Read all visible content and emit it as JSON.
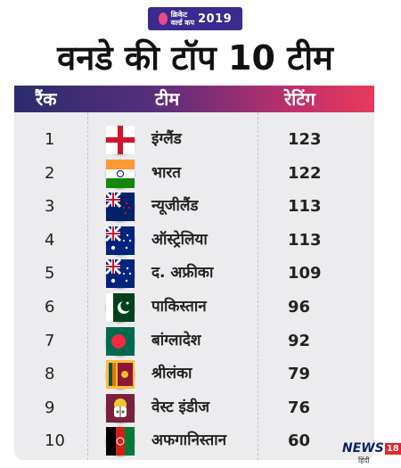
{
  "badge": {
    "line1": "क्रिकेट",
    "line2": "वर्ल्ड कप",
    "year": "2019"
  },
  "title": "वनडे की टॉप 10 टीम",
  "headers": {
    "rank": "रैंक",
    "team": "टीम",
    "rating": "रेटिंग"
  },
  "rows": [
    {
      "rank": "1",
      "team": "इंग्लैंड",
      "rating": "123",
      "flag": "england-flag"
    },
    {
      "rank": "2",
      "team": "भारत",
      "rating": "122",
      "flag": "india-flag"
    },
    {
      "rank": "3",
      "team": "न्यूजीलैंड",
      "rating": "113",
      "flag": "new-zealand-flag"
    },
    {
      "rank": "4",
      "team": "ऑस्ट्रेलिया",
      "rating": "113",
      "flag": "australia-flag"
    },
    {
      "rank": "5",
      "team": "द. अफ्रीका",
      "rating": "109",
      "flag": "australia-flag"
    },
    {
      "rank": "6",
      "team": "पाकिस्तान",
      "rating": "96",
      "flag": "pakistan-flag"
    },
    {
      "rank": "7",
      "team": "बांग्लादेश",
      "rating": "92",
      "flag": "bangladesh-flag"
    },
    {
      "rank": "8",
      "team": "श्रीलंका",
      "rating": "79",
      "flag": "sri-lanka-flag"
    },
    {
      "rank": "9",
      "team": "वेस्ट इंडीज",
      "rating": "76",
      "flag": "west-indies-flag"
    },
    {
      "rank": "10",
      "team": "अफगानिस्तान",
      "rating": "60",
      "flag": "afghanistan-flag"
    }
  ],
  "logo": {
    "name": "NEWS",
    "number": "18",
    "sub": "हिंदी"
  },
  "colors": {
    "header_start": "#2a2c6e",
    "header_end": "#e83a5c",
    "panel": "#ececef"
  }
}
